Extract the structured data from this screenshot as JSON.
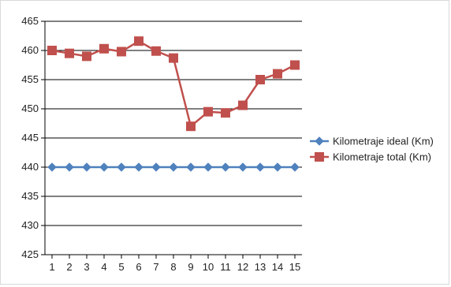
{
  "chart_data": {
    "type": "line",
    "x": [
      1,
      2,
      3,
      4,
      5,
      6,
      7,
      8,
      9,
      10,
      11,
      12,
      13,
      14,
      15
    ],
    "series": [
      {
        "name": "Kilometraje ideal (Km)",
        "color": "#4f81bd",
        "marker": "diamond",
        "values": [
          440,
          440,
          440,
          440,
          440,
          440,
          440,
          440,
          440,
          440,
          440,
          440,
          440,
          440,
          440
        ]
      },
      {
        "name": "Kilometraje total (Km)",
        "color": "#c0504d",
        "marker": "square",
        "values": [
          460,
          459.5,
          459,
          460.3,
          459.8,
          461.6,
          459.9,
          458.7,
          447,
          449.5,
          449.3,
          450.6,
          455,
          456,
          457.5
        ]
      }
    ],
    "ylim": [
      425,
      465
    ],
    "yticks": [
      425,
      430,
      435,
      440,
      445,
      450,
      455,
      460,
      465
    ],
    "grid": true,
    "legend_position": "right",
    "title": "",
    "xlabel": "",
    "ylabel": ""
  }
}
